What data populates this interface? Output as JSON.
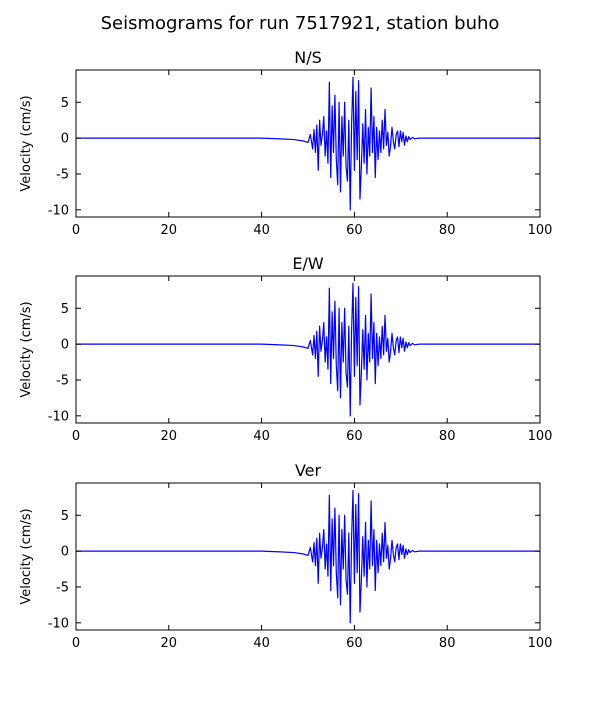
{
  "figure": {
    "title": "Seismograms for run 7517921, station buho"
  },
  "chart_data": [
    {
      "type": "line",
      "title": "N/S",
      "xlabel": "",
      "ylabel": "Velocity (cm/s)",
      "xlim": [
        0,
        100
      ],
      "ylim": [
        -11,
        9.5
      ],
      "xticks": [
        0,
        20,
        40,
        60,
        80,
        100
      ],
      "yticks": [
        -10,
        -5,
        0,
        5
      ],
      "grid": false,
      "color": "#0000ff",
      "series": [
        {
          "x": [
            0,
            10,
            20,
            30,
            40,
            44,
            47,
            49,
            50,
            50.5,
            51,
            51.3,
            51.6,
            51.9,
            52.2,
            52.5,
            52.8,
            53.1,
            53.4,
            53.7,
            54.0,
            54.3,
            54.6,
            54.9,
            55.2,
            55.5,
            55.8,
            56.1,
            56.4,
            56.7,
            57.0,
            57.3,
            57.6,
            57.9,
            58.2,
            58.5,
            58.8,
            59.1,
            59.4,
            59.7,
            60.0,
            60.3,
            60.6,
            60.9,
            61.2,
            61.5,
            61.8,
            62.1,
            62.4,
            62.7,
            63.0,
            63.3,
            63.6,
            63.9,
            64.2,
            64.5,
            64.8,
            65.1,
            65.4,
            65.7,
            66.0,
            66.3,
            66.6,
            66.9,
            67.2,
            67.5,
            67.8,
            68.1,
            68.4,
            68.7,
            69.0,
            69.3,
            69.6,
            69.9,
            70.2,
            70.5,
            70.8,
            71.1,
            71.4,
            71.7,
            72.0,
            72.5,
            73.0,
            74,
            76,
            80,
            90,
            100
          ],
          "y": [
            0,
            0,
            0,
            0,
            0,
            -0.1,
            -0.2,
            -0.4,
            -0.6,
            0.5,
            -1.5,
            1.2,
            -2.0,
            1.8,
            -4.5,
            2.5,
            -1.0,
            0.5,
            3.0,
            -2.5,
            1.0,
            -3.5,
            7.8,
            -5.5,
            4.5,
            -2.0,
            6.0,
            -3.0,
            -6.5,
            5.0,
            -7.5,
            3.0,
            -2.5,
            5.0,
            -4.0,
            -6.0,
            2.5,
            -10.0,
            2.0,
            8.5,
            -4.5,
            6.5,
            -3.0,
            8.0,
            -8.5,
            -4.0,
            2.0,
            -3.5,
            4.0,
            -5.0,
            1.5,
            -2.5,
            7.0,
            -2.0,
            3.0,
            -5.5,
            1.5,
            -3.0,
            1.0,
            -2.0,
            2.5,
            -1.5,
            4.0,
            -1.0,
            0.8,
            -2.5,
            -1.0,
            1.5,
            -0.5,
            -1.5,
            0.5,
            1.0,
            -1.2,
            1.0,
            -0.5,
            0.8,
            -1.0,
            0.3,
            -0.5,
            0.2,
            -0.2,
            0.1,
            -0.1,
            0,
            0,
            0,
            0,
            0
          ]
        }
      ]
    },
    {
      "type": "line",
      "title": "E/W",
      "xlabel": "",
      "ylabel": "Velocity (cm/s)",
      "xlim": [
        0,
        100
      ],
      "ylim": [
        -11,
        9.5
      ],
      "xticks": [
        0,
        20,
        40,
        60,
        80,
        100
      ],
      "yticks": [
        -10,
        -5,
        0,
        5
      ],
      "grid": false,
      "color": "#0000ff",
      "series": [
        {
          "x": [
            0,
            10,
            20,
            30,
            40,
            44,
            47,
            49,
            50,
            50.5,
            51,
            51.3,
            51.6,
            51.9,
            52.2,
            52.5,
            52.8,
            53.1,
            53.4,
            53.7,
            54.0,
            54.3,
            54.6,
            54.9,
            55.2,
            55.5,
            55.8,
            56.1,
            56.4,
            56.7,
            57.0,
            57.3,
            57.6,
            57.9,
            58.2,
            58.5,
            58.8,
            59.1,
            59.4,
            59.7,
            60.0,
            60.3,
            60.6,
            60.9,
            61.2,
            61.5,
            61.8,
            62.1,
            62.4,
            62.7,
            63.0,
            63.3,
            63.6,
            63.9,
            64.2,
            64.5,
            64.8,
            65.1,
            65.4,
            65.7,
            66.0,
            66.3,
            66.6,
            66.9,
            67.2,
            67.5,
            67.8,
            68.1,
            68.4,
            68.7,
            69.0,
            69.3,
            69.6,
            69.9,
            70.2,
            70.5,
            70.8,
            71.1,
            71.4,
            71.7,
            72.0,
            72.5,
            73.0,
            74,
            76,
            80,
            90,
            100
          ],
          "y": [
            0,
            0,
            0,
            0,
            0,
            -0.1,
            -0.2,
            -0.4,
            -0.6,
            0.5,
            -1.5,
            1.2,
            -2.0,
            1.8,
            -4.5,
            2.5,
            -1.0,
            0.5,
            3.0,
            -2.5,
            1.0,
            -3.5,
            7.8,
            -5.5,
            4.5,
            -2.0,
            6.0,
            -3.0,
            -6.5,
            5.0,
            -7.5,
            3.0,
            -2.5,
            5.0,
            -4.0,
            -6.0,
            2.5,
            -10.0,
            2.0,
            8.5,
            -4.5,
            6.5,
            -3.0,
            8.0,
            -8.5,
            -4.0,
            2.0,
            -3.5,
            4.0,
            -5.0,
            1.5,
            -2.5,
            7.0,
            -2.0,
            3.0,
            -5.5,
            1.5,
            -3.0,
            1.0,
            -2.0,
            2.5,
            -1.5,
            4.0,
            -1.0,
            0.8,
            -2.5,
            -1.0,
            1.5,
            -0.5,
            -1.5,
            0.5,
            1.0,
            -1.2,
            1.0,
            -0.5,
            0.8,
            -1.0,
            0.3,
            -0.5,
            0.2,
            -0.2,
            0.1,
            -0.1,
            0,
            0,
            0,
            0,
            0
          ]
        }
      ]
    },
    {
      "type": "line",
      "title": "Ver",
      "xlabel": "",
      "ylabel": "Velocity (cm/s)",
      "xlim": [
        0,
        100
      ],
      "ylim": [
        -11,
        9.5
      ],
      "xticks": [
        0,
        20,
        40,
        60,
        80,
        100
      ],
      "yticks": [
        -10,
        -5,
        0,
        5
      ],
      "grid": false,
      "color": "#0000ff",
      "series": [
        {
          "x": [
            0,
            10,
            20,
            30,
            40,
            44,
            47,
            49,
            50,
            50.5,
            51,
            51.3,
            51.6,
            51.9,
            52.2,
            52.5,
            52.8,
            53.1,
            53.4,
            53.7,
            54.0,
            54.3,
            54.6,
            54.9,
            55.2,
            55.5,
            55.8,
            56.1,
            56.4,
            56.7,
            57.0,
            57.3,
            57.6,
            57.9,
            58.2,
            58.5,
            58.8,
            59.1,
            59.4,
            59.7,
            60.0,
            60.3,
            60.6,
            60.9,
            61.2,
            61.5,
            61.8,
            62.1,
            62.4,
            62.7,
            63.0,
            63.3,
            63.6,
            63.9,
            64.2,
            64.5,
            64.8,
            65.1,
            65.4,
            65.7,
            66.0,
            66.3,
            66.6,
            66.9,
            67.2,
            67.5,
            67.8,
            68.1,
            68.4,
            68.7,
            69.0,
            69.3,
            69.6,
            69.9,
            70.2,
            70.5,
            70.8,
            71.1,
            71.4,
            71.7,
            72.0,
            72.5,
            73.0,
            74,
            76,
            80,
            90,
            100
          ],
          "y": [
            0,
            0,
            0,
            0,
            0,
            -0.1,
            -0.2,
            -0.4,
            -0.6,
            0.5,
            -1.5,
            1.2,
            -2.0,
            1.8,
            -4.5,
            2.5,
            -1.0,
            0.5,
            3.0,
            -2.5,
            1.0,
            -3.5,
            7.8,
            -5.5,
            4.5,
            -2.0,
            6.0,
            -3.0,
            -6.5,
            5.0,
            -7.5,
            3.0,
            -2.5,
            5.0,
            -4.0,
            -6.0,
            2.5,
            -10.0,
            2.0,
            8.5,
            -4.5,
            6.5,
            -3.0,
            8.0,
            -8.5,
            -4.0,
            2.0,
            -3.5,
            4.0,
            -5.0,
            1.5,
            -2.5,
            7.0,
            -2.0,
            3.0,
            -5.5,
            1.5,
            -3.0,
            1.0,
            -2.0,
            2.5,
            -1.5,
            4.0,
            -1.0,
            0.8,
            -2.5,
            -1.0,
            1.5,
            -0.5,
            -1.5,
            0.5,
            1.0,
            -1.2,
            1.0,
            -0.5,
            0.8,
            -1.0,
            0.3,
            -0.5,
            0.2,
            -0.2,
            0.1,
            -0.1,
            0,
            0,
            0,
            0,
            0
          ]
        }
      ]
    }
  ]
}
